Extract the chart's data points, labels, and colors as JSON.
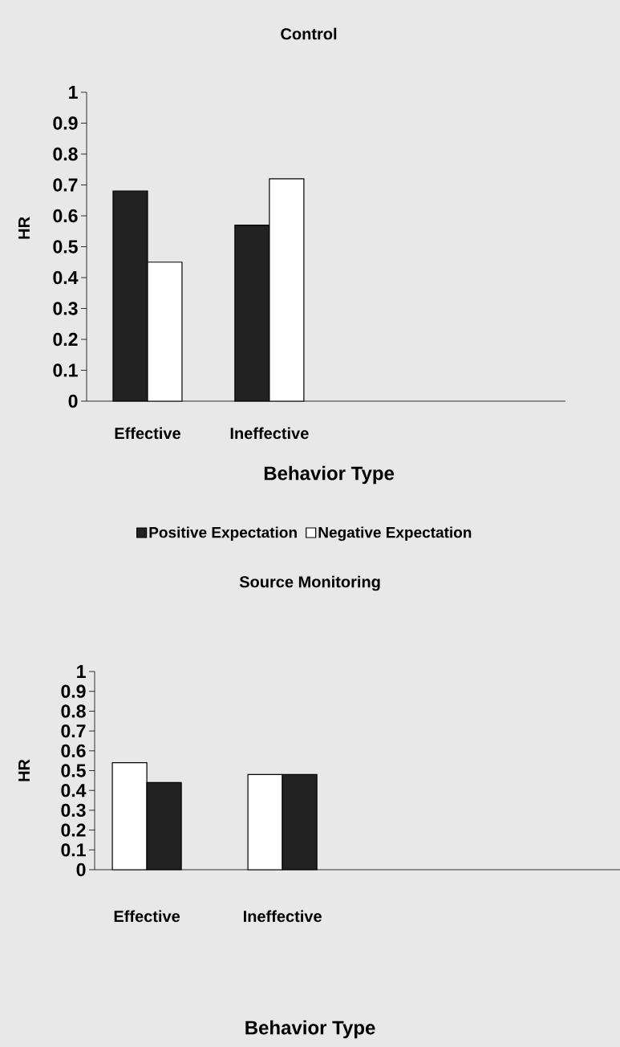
{
  "chart_data": [
    {
      "type": "bar",
      "title": "Control",
      "xlabel": "Behavior Type",
      "ylabel": "HR",
      "categories": [
        "Effective",
        "Ineffective",
        null,
        null
      ],
      "series": [
        {
          "name": "Positive Expectation",
          "color": "#222222",
          "values": [
            0.68,
            0.57,
            null,
            null
          ]
        },
        {
          "name": "Negative Expectation",
          "color": "#ffffff",
          "values": [
            0.45,
            0.72,
            null,
            null
          ]
        }
      ],
      "ylim": [
        0,
        1
      ],
      "yticks": [
        0,
        0.1,
        0.2,
        0.3,
        0.4,
        0.5,
        0.6,
        0.7,
        0.8,
        0.9,
        1
      ],
      "legend": "bottom"
    },
    {
      "type": "bar",
      "title": "Source Monitoring",
      "xlabel": "Behavior Type",
      "ylabel": "HR",
      "categories": [
        "Effective",
        "Ineffective",
        null,
        null
      ],
      "series": [
        {
          "color": "#ffffff",
          "values": [
            0.54,
            0.48,
            null,
            null
          ]
        },
        {
          "color": "#222222",
          "values": [
            0.44,
            0.48,
            null,
            null
          ]
        }
      ],
      "ylim": [
        0,
        1
      ],
      "yticks": [
        0,
        0.1,
        0.2,
        0.3,
        0.4,
        0.5,
        0.6,
        0.7,
        0.8,
        0.9,
        1
      ]
    }
  ]
}
